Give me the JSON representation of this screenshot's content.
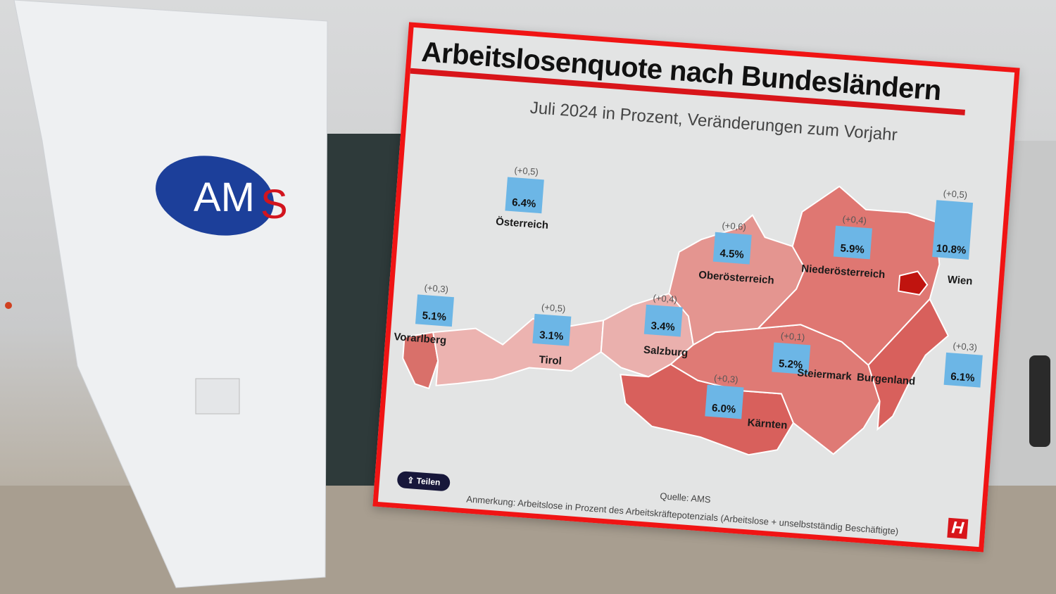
{
  "background": {
    "building_logo": "AMS"
  },
  "infographic": {
    "title": "Arbeitslosenquote nach Bundesländern",
    "subtitle": "Juli 2024 in Prozent, Veränderungen zum Vorjahr",
    "share_button": "Teilen",
    "source": "Quelle: AMS",
    "note": "Anmerkung: Arbeitslose in Prozent des Arbeitskräftepotenzials (Arbeitslose + unselbstständig Beschäftigte)",
    "publisher_logo": "H",
    "colors": {
      "bar": "#6cb6e6",
      "accent": "#f01414",
      "wien": "#c0140f"
    },
    "regions": [
      {
        "name": "Österreich",
        "value": "6.4%",
        "change": "(+0,5)"
      },
      {
        "name": "Vorarlberg",
        "value": "5.1%",
        "change": "(+0,3)"
      },
      {
        "name": "Tirol",
        "value": "3.1%",
        "change": "(+0,5)"
      },
      {
        "name": "Salzburg",
        "value": "3.4%",
        "change": "(+0,4)"
      },
      {
        "name": "Oberösterreich",
        "value": "4.5%",
        "change": "(+0,6)"
      },
      {
        "name": "Niederösterreich",
        "value": "5.9%",
        "change": "(+0,4)"
      },
      {
        "name": "Wien",
        "value": "10.8%",
        "change": "(+0,5)"
      },
      {
        "name": "Burgenland",
        "value": "6.1%",
        "change": "(+0,3)"
      },
      {
        "name": "Steiermark",
        "value": "5.2%",
        "change": "(+0,1)"
      },
      {
        "name": "Kärnten",
        "value": "6.0%",
        "change": "(+0,3)"
      }
    ]
  }
}
